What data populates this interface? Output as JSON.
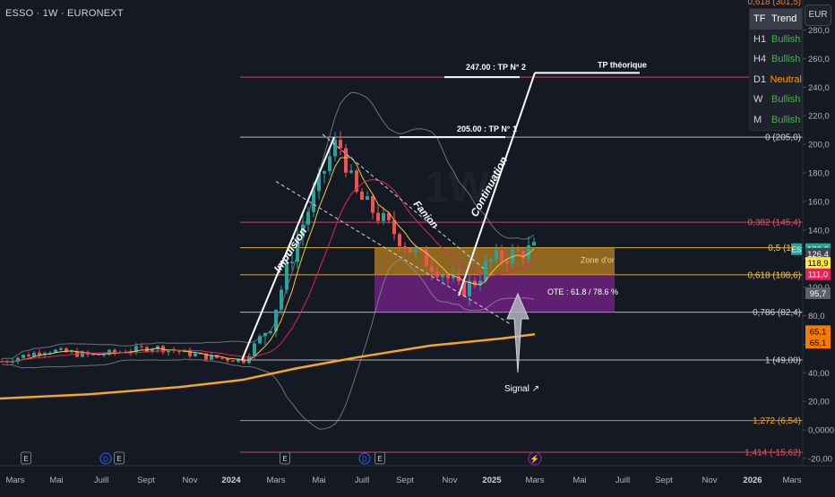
{
  "header": {
    "symbol": "ESSO · 1W · EURONEXT",
    "currency": "EUR"
  },
  "trend_table": {
    "header_tf": "TF",
    "header_trend": "Trend",
    "rows": [
      {
        "tf": "H1",
        "trend": "Bullish",
        "color": "#4caf50"
      },
      {
        "tf": "H4",
        "trend": "Bullish",
        "color": "#4caf50"
      },
      {
        "tf": "D1",
        "trend": "Neutral",
        "color": "#ff9800"
      },
      {
        "tf": "W",
        "trend": "Bullish",
        "color": "#4caf50"
      },
      {
        "tf": "M",
        "trend": "Bullish",
        "color": "#4caf50"
      }
    ]
  },
  "chart_data": {
    "type": "candlestick",
    "y_axis": {
      "min": -20,
      "max": 290,
      "ticks": [
        "280,0",
        "260,0",
        "240,0",
        "220,0",
        "200,0",
        "180,0",
        "160,0",
        "140,0",
        "120,0",
        "100,0",
        "80,0",
        "60,0",
        "40,00",
        "20,00",
        "0,0000",
        "-20,00"
      ],
      "tick_values": [
        280,
        260,
        240,
        220,
        200,
        180,
        160,
        140,
        120,
        100,
        80,
        60,
        40,
        20,
        0,
        -20
      ]
    },
    "x_axis": {
      "labels": [
        "Mars",
        "Mai",
        "Juill",
        "Sept",
        "Nov",
        "2024",
        "Mars",
        "Mai",
        "Juill",
        "Sept",
        "Nov",
        "2025",
        "Mars",
        "Mai",
        "Juill",
        "Sept",
        "Nov",
        "2026",
        "Mars"
      ],
      "bold": [
        "2024",
        "2025",
        "2026"
      ]
    },
    "fib_levels": [
      {
        "label": "0,618 (301,5)",
        "value": 301.5,
        "color": "#f57c2b"
      },
      {
        "label": "0 (205,0)",
        "value": 205.0,
        "color": "#d1d4dc"
      },
      {
        "label": "0,382 (145,4)",
        "value": 145.4,
        "color": "#e0566a"
      },
      {
        "label": "0,5 (127",
        "value": 127.6,
        "color": "#f5c542"
      },
      {
        "label": "0,618 (108,6)",
        "value": 108.6,
        "color": "#f5c542"
      },
      {
        "label": "0,786 (82,4)",
        "value": 82.4,
        "color": "#d1d4dc"
      },
      {
        "label": "1 (49,00)",
        "value": 49.0,
        "color": "#d1d4dc"
      },
      {
        "label": "1,272 (6,54)",
        "value": 6.54,
        "color": "#f5a623"
      },
      {
        "label": "1,414 (-15,62)",
        "value": -15.62,
        "color": "#e0566a"
      }
    ],
    "tp_levels": [
      {
        "label": "247.00 : TP N° 2",
        "value": 247.0
      },
      {
        "label": "205.00 : TP N° 1",
        "value": 205.0
      },
      {
        "label": "TP théorique",
        "value": 250.0
      }
    ],
    "zones": [
      {
        "label": "Zone d'or",
        "top": 127.6,
        "bottom": 108.6,
        "color": "#f5a623"
      },
      {
        "label": "OTE : 61.8 / 78.6 %",
        "top": 108.6,
        "bottom": 82.4,
        "color": "#9c27b0"
      }
    ],
    "annotations": [
      "Impulsion",
      "Fanion",
      "Continuation",
      "Signal ↗"
    ],
    "price_badges": [
      {
        "text": "126,6",
        "value": 126.6,
        "bg": "#26a69a",
        "fg": "#ffffff"
      },
      {
        "text": "126,4",
        "value": 126.4,
        "bg": "#434651",
        "fg": "#ffffff"
      },
      {
        "text": "118,9",
        "value": 118.9,
        "bg": "#ffeb3b",
        "fg": "#000000"
      },
      {
        "text": "111,0",
        "value": 111.0,
        "bg": "#e0245e",
        "fg": "#ffffff"
      },
      {
        "text": "95,7",
        "value": 95.7,
        "bg": "#5d606b",
        "fg": "#ffffff"
      },
      {
        "text": "65,1",
        "value": 65.1,
        "bg": "#f57c00",
        "fg": "#000000"
      },
      {
        "text": "65,1",
        "value": 65.1,
        "bg": "#f57c00",
        "fg": "#000000"
      }
    ],
    "symbol_tag": "ES",
    "event_markers": [
      "E",
      "D",
      "E",
      "E",
      "D",
      "E",
      "⚡"
    ]
  }
}
